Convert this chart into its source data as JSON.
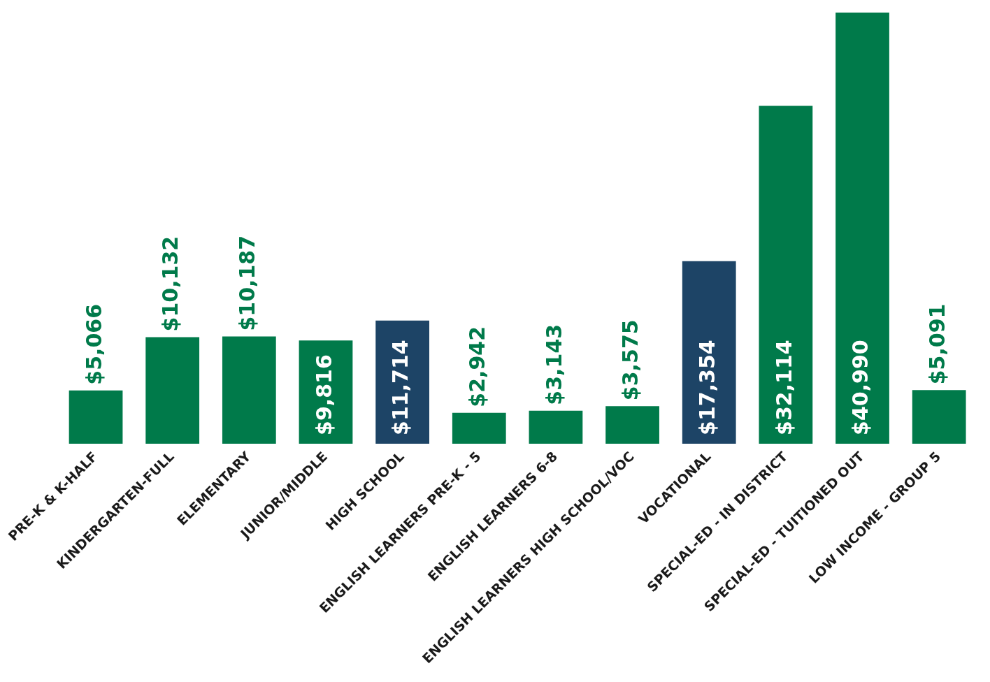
{
  "chart_data": {
    "type": "bar",
    "categories": [
      "PRE-K & K-HALF",
      "KINDERGARTEN-FULL",
      "ELEMENTARY",
      "JUNIOR/MIDDLE",
      "HIGH SCHOOL",
      "ENGLISH LEARNERS PRE-K - 5",
      "ENGLISH LEARNERS 6-8",
      "ENGLISH LEARNERS HIGH SCHOOL/VOC",
      "VOCATIONAL",
      "SPECIAL-ED - IN DISTRICT",
      "SPECIAL-ED - TUITIONED OUT",
      "LOW INCOME - GROUP 5"
    ],
    "values": [
      5066,
      10132,
      10187,
      9816,
      11714,
      2942,
      3143,
      3575,
      17354,
      32114,
      40990,
      5091
    ],
    "value_labels": [
      "$5,066",
      "$10,132",
      "$10,187",
      "$9,816",
      "$11,714",
      "$2,942",
      "$3,143",
      "$3,575",
      "$17,354",
      "$32,114",
      "$40,990",
      "$5,091"
    ],
    "colors": [
      "#007a4a",
      "#007a4a",
      "#007a4a",
      "#007a4a",
      "#1d4466",
      "#007a4a",
      "#007a4a",
      "#007a4a",
      "#1d4466",
      "#007a4a",
      "#007a4a",
      "#007a4a"
    ],
    "grid": false,
    "legend": false
  }
}
